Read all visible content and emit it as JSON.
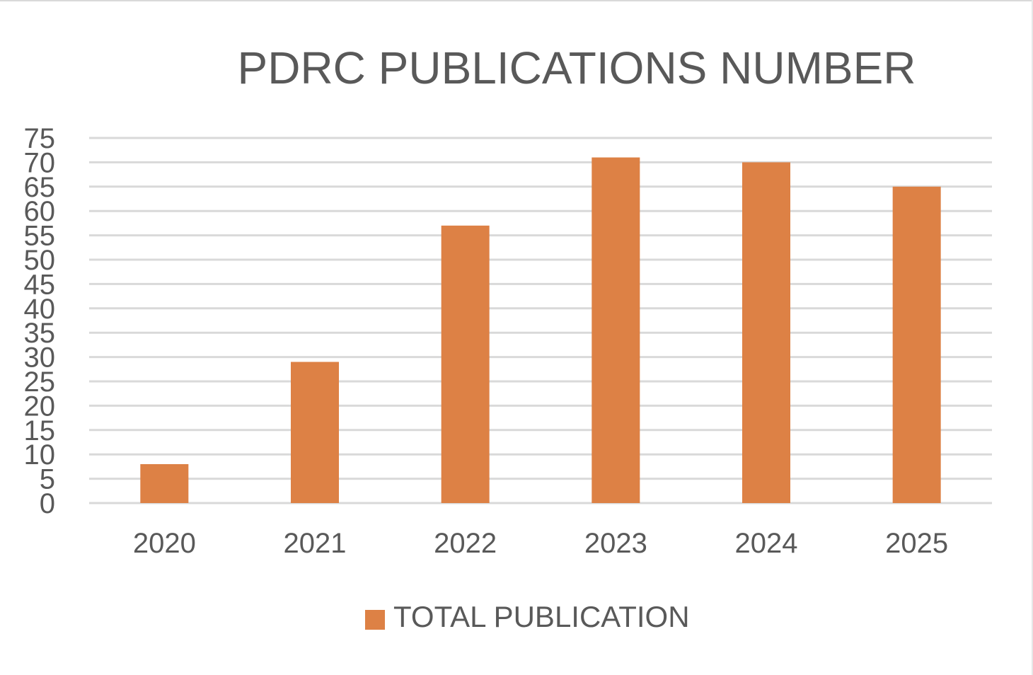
{
  "chart_data": {
    "type": "bar",
    "title": "PDRC PUBLICATIONS NUMBER",
    "xlabel": "",
    "ylabel": "",
    "categories": [
      "2020",
      "2021",
      "2022",
      "2023",
      "2024",
      "2025"
    ],
    "series": [
      {
        "name": "TOTAL PUBLICATION",
        "values": [
          8,
          29,
          57,
          71,
          70,
          65
        ],
        "color": "#dd8145"
      }
    ],
    "ylim": [
      0,
      75
    ],
    "ytick_step": 5,
    "yticks": [
      "0",
      "5",
      "10",
      "15",
      "20",
      "25",
      "30",
      "35",
      "40",
      "45",
      "50",
      "55",
      "60",
      "65",
      "70",
      "75"
    ],
    "grid": true,
    "gridline_color": "#d9d9d9",
    "text_color": "#595959",
    "legend_position": "bottom"
  }
}
